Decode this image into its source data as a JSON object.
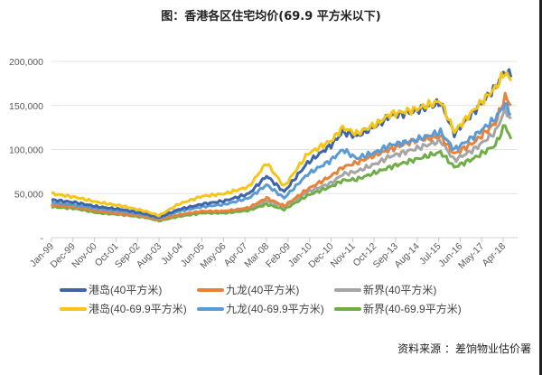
{
  "chart_data": {
    "type": "line",
    "title": "图：香港各区住宅均价(69.9 平方米以下)",
    "xlabel": "",
    "ylabel": "",
    "ylim": [
      0,
      200000
    ],
    "yticks": [
      "-",
      "50,000",
      "100,000",
      "150,000",
      "200,000"
    ],
    "xlim": [
      "1999-01",
      "2018-08"
    ],
    "xticks": [
      "Jan-99",
      "Dec-99",
      "Nov-00",
      "Oct-01",
      "Sep-02",
      "Aug-03",
      "Jul-04",
      "Jun-05",
      "May-06",
      "Apr-07",
      "Mar-08",
      "Feb-09",
      "Jan-10",
      "Dec-10",
      "Nov-11",
      "Oct-12",
      "Sep-13",
      "Aug-14",
      "Jul-15",
      "Jun-16",
      "May-17",
      "Apr-18"
    ],
    "grid": true,
    "legend": "bottom",
    "x": [
      "1999-01",
      "2000-01",
      "2001-01",
      "2002-01",
      "2003-01",
      "2003-08",
      "2004-06",
      "2005-06",
      "2006-06",
      "2007-06",
      "2008-03",
      "2008-12",
      "2009-12",
      "2010-12",
      "2011-06",
      "2012-01",
      "2012-12",
      "2013-06",
      "2014-06",
      "2015-08",
      "2016-03",
      "2017-01",
      "2017-12",
      "2018-05",
      "2018-08"
    ],
    "series": [
      {
        "name": "港岛(40平方米)",
        "color": "#3e65a8",
        "values": [
          43000,
          40000,
          35000,
          32000,
          27000,
          23000,
          32000,
          38000,
          42000,
          50000,
          70000,
          52000,
          85000,
          105000,
          120000,
          115000,
          128000,
          138000,
          143000,
          153000,
          118000,
          143000,
          170000,
          190000,
          182000
        ]
      },
      {
        "name": "九龙(40平方米)",
        "color": "#e8823a",
        "values": [
          37000,
          35000,
          30000,
          27000,
          24000,
          20000,
          26000,
          30000,
          30000,
          34000,
          45000,
          36000,
          55000,
          70000,
          80000,
          85000,
          95000,
          100000,
          110000,
          115000,
          95000,
          108000,
          130000,
          160000,
          150000
        ]
      },
      {
        "name": "新界(40平方米)",
        "color": "#a5a5a5",
        "values": [
          36000,
          34000,
          29000,
          27000,
          24000,
          20000,
          25000,
          29000,
          30000,
          33000,
          42000,
          35000,
          52000,
          62000,
          72000,
          75000,
          85000,
          92000,
          100000,
          110000,
          88000,
          100000,
          120000,
          145000,
          135000
        ]
      },
      {
        "name": "港岛(40-69.9平方米)",
        "color": "#f5c518",
        "values": [
          50000,
          46000,
          40000,
          36000,
          30000,
          25000,
          38000,
          47000,
          50000,
          58000,
          85000,
          58000,
          95000,
          110000,
          125000,
          118000,
          130000,
          140000,
          145000,
          155000,
          120000,
          145000,
          170000,
          188000,
          178000
        ]
      },
      {
        "name": "九龙(40-69.9平方米)",
        "color": "#5b9bd5",
        "values": [
          40000,
          37000,
          33000,
          30000,
          26000,
          22000,
          30000,
          35000,
          38000,
          45000,
          60000,
          45000,
          72000,
          88000,
          100000,
          90000,
          98000,
          105000,
          110000,
          120000,
          100000,
          115000,
          135000,
          152000,
          140000
        ]
      },
      {
        "name": "新界(40-69.9平方米)",
        "color": "#70ad47",
        "values": [
          35000,
          33000,
          28000,
          26000,
          23000,
          19000,
          24000,
          28000,
          28000,
          31000,
          38000,
          32000,
          48000,
          58000,
          65000,
          66000,
          75000,
          80000,
          88000,
          97000,
          80000,
          90000,
          105000,
          128000,
          112000
        ]
      }
    ],
    "source": "资料来源 ：差饷物业估价署"
  }
}
